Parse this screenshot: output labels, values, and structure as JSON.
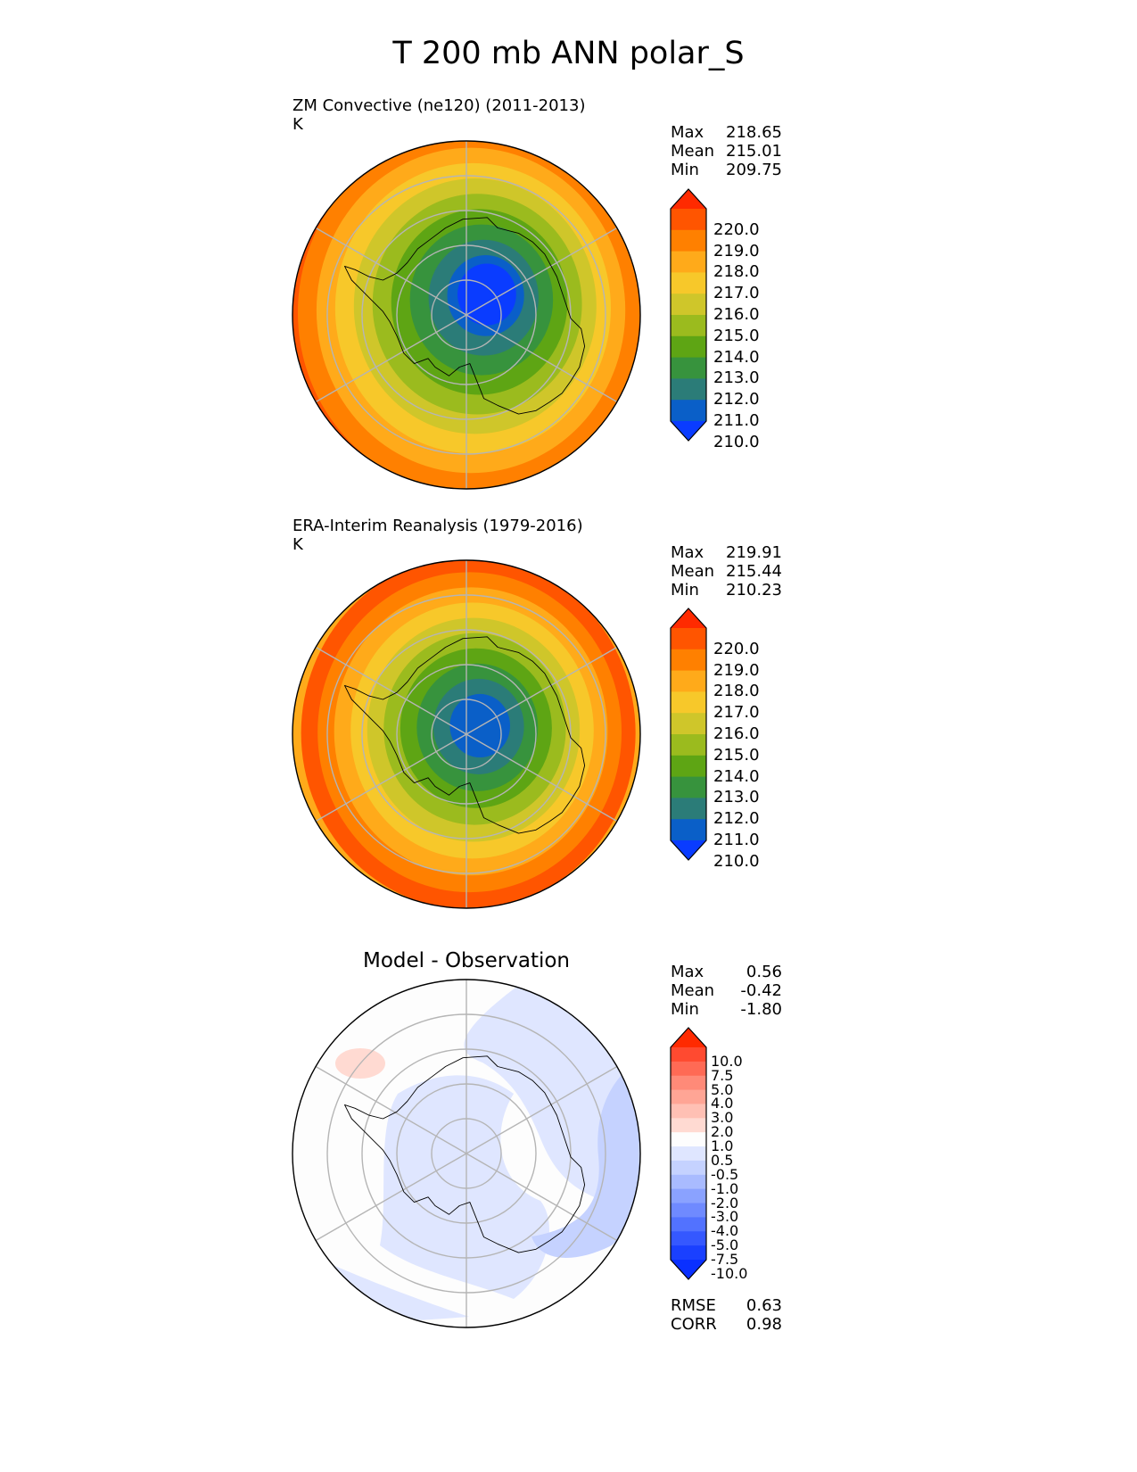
{
  "figure": {
    "title": "T 200 mb ANN polar_S"
  },
  "chart_data": [
    {
      "type": "heatmap",
      "projection": "south-polar-stereographic",
      "title": "ZM Convective (ne120) (2011-2013)",
      "units": "K",
      "stats": [
        {
          "label": "Max",
          "value": "218.65"
        },
        {
          "label": "Mean",
          "value": "215.01"
        },
        {
          "label": "Min",
          "value": "209.75"
        }
      ],
      "colorbar": {
        "ticks": [
          "220.0",
          "219.0",
          "218.0",
          "217.0",
          "216.0",
          "215.0",
          "214.0",
          "213.0",
          "212.0",
          "211.0",
          "210.0"
        ],
        "colors": [
          "#ff2a00",
          "#ff5500",
          "#ff8000",
          "#ffaa1a",
          "#f7c82a",
          "#cfc62a",
          "#9bbb1e",
          "#5ea514",
          "#37933d",
          "#2b7c78",
          "#0a5fc8",
          "#0a3cff"
        ],
        "extend": "both"
      },
      "field": {
        "center_value": 209.75,
        "min": 209.75,
        "max": 218.65,
        "cold_center_offset": [
          0.12,
          -0.12
        ]
      }
    },
    {
      "type": "heatmap",
      "projection": "south-polar-stereographic",
      "title": "ERA-Interim Reanalysis (1979-2016)",
      "units": "K",
      "stats": [
        {
          "label": "Max",
          "value": "219.91"
        },
        {
          "label": "Mean",
          "value": "215.44"
        },
        {
          "label": "Min",
          "value": "210.23"
        }
      ],
      "colorbar": {
        "ticks": [
          "220.0",
          "219.0",
          "218.0",
          "217.0",
          "216.0",
          "215.0",
          "214.0",
          "213.0",
          "212.0",
          "211.0",
          "210.0"
        ],
        "colors": [
          "#ff2a00",
          "#ff5500",
          "#ff8000",
          "#ffaa1a",
          "#f7c82a",
          "#cfc62a",
          "#9bbb1e",
          "#5ea514",
          "#37933d",
          "#2b7c78",
          "#0a5fc8",
          "#0a3cff"
        ],
        "extend": "both"
      },
      "field": {
        "center_value": 210.23,
        "min": 210.23,
        "max": 219.91,
        "cold_center_offset": [
          0.08,
          -0.05
        ]
      }
    },
    {
      "type": "heatmap",
      "projection": "south-polar-stereographic",
      "title": "Model - Observation",
      "stats": [
        {
          "label": "Max",
          "value": "0.56"
        },
        {
          "label": "Mean",
          "value": "-0.42"
        },
        {
          "label": "Min",
          "value": "-1.80"
        }
      ],
      "extra_stats": [
        {
          "label": "RMSE",
          "value": "0.63"
        },
        {
          "label": "CORR",
          "value": "0.98"
        }
      ],
      "colorbar": {
        "ticks": [
          "10.0",
          "7.5",
          "5.0",
          "4.0",
          "3.0",
          "2.0",
          "1.0",
          "0.5",
          "-0.5",
          "-1.0",
          "-2.0",
          "-3.0",
          "-4.0",
          "-5.0",
          "-7.5",
          "-10.0"
        ],
        "colors": [
          "#ff2a00",
          "#ff4a30",
          "#ff6a55",
          "#ff8a78",
          "#ffa595",
          "#ffc0b4",
          "#ffdad2",
          "#fdfdfd",
          "#dfe6ff",
          "#c5d2ff",
          "#a9bbff",
          "#8aa2ff",
          "#6f8aff",
          "#5272ff",
          "#3558ff",
          "#1a40ff",
          "#0a30ff"
        ],
        "extend": "both"
      }
    }
  ]
}
